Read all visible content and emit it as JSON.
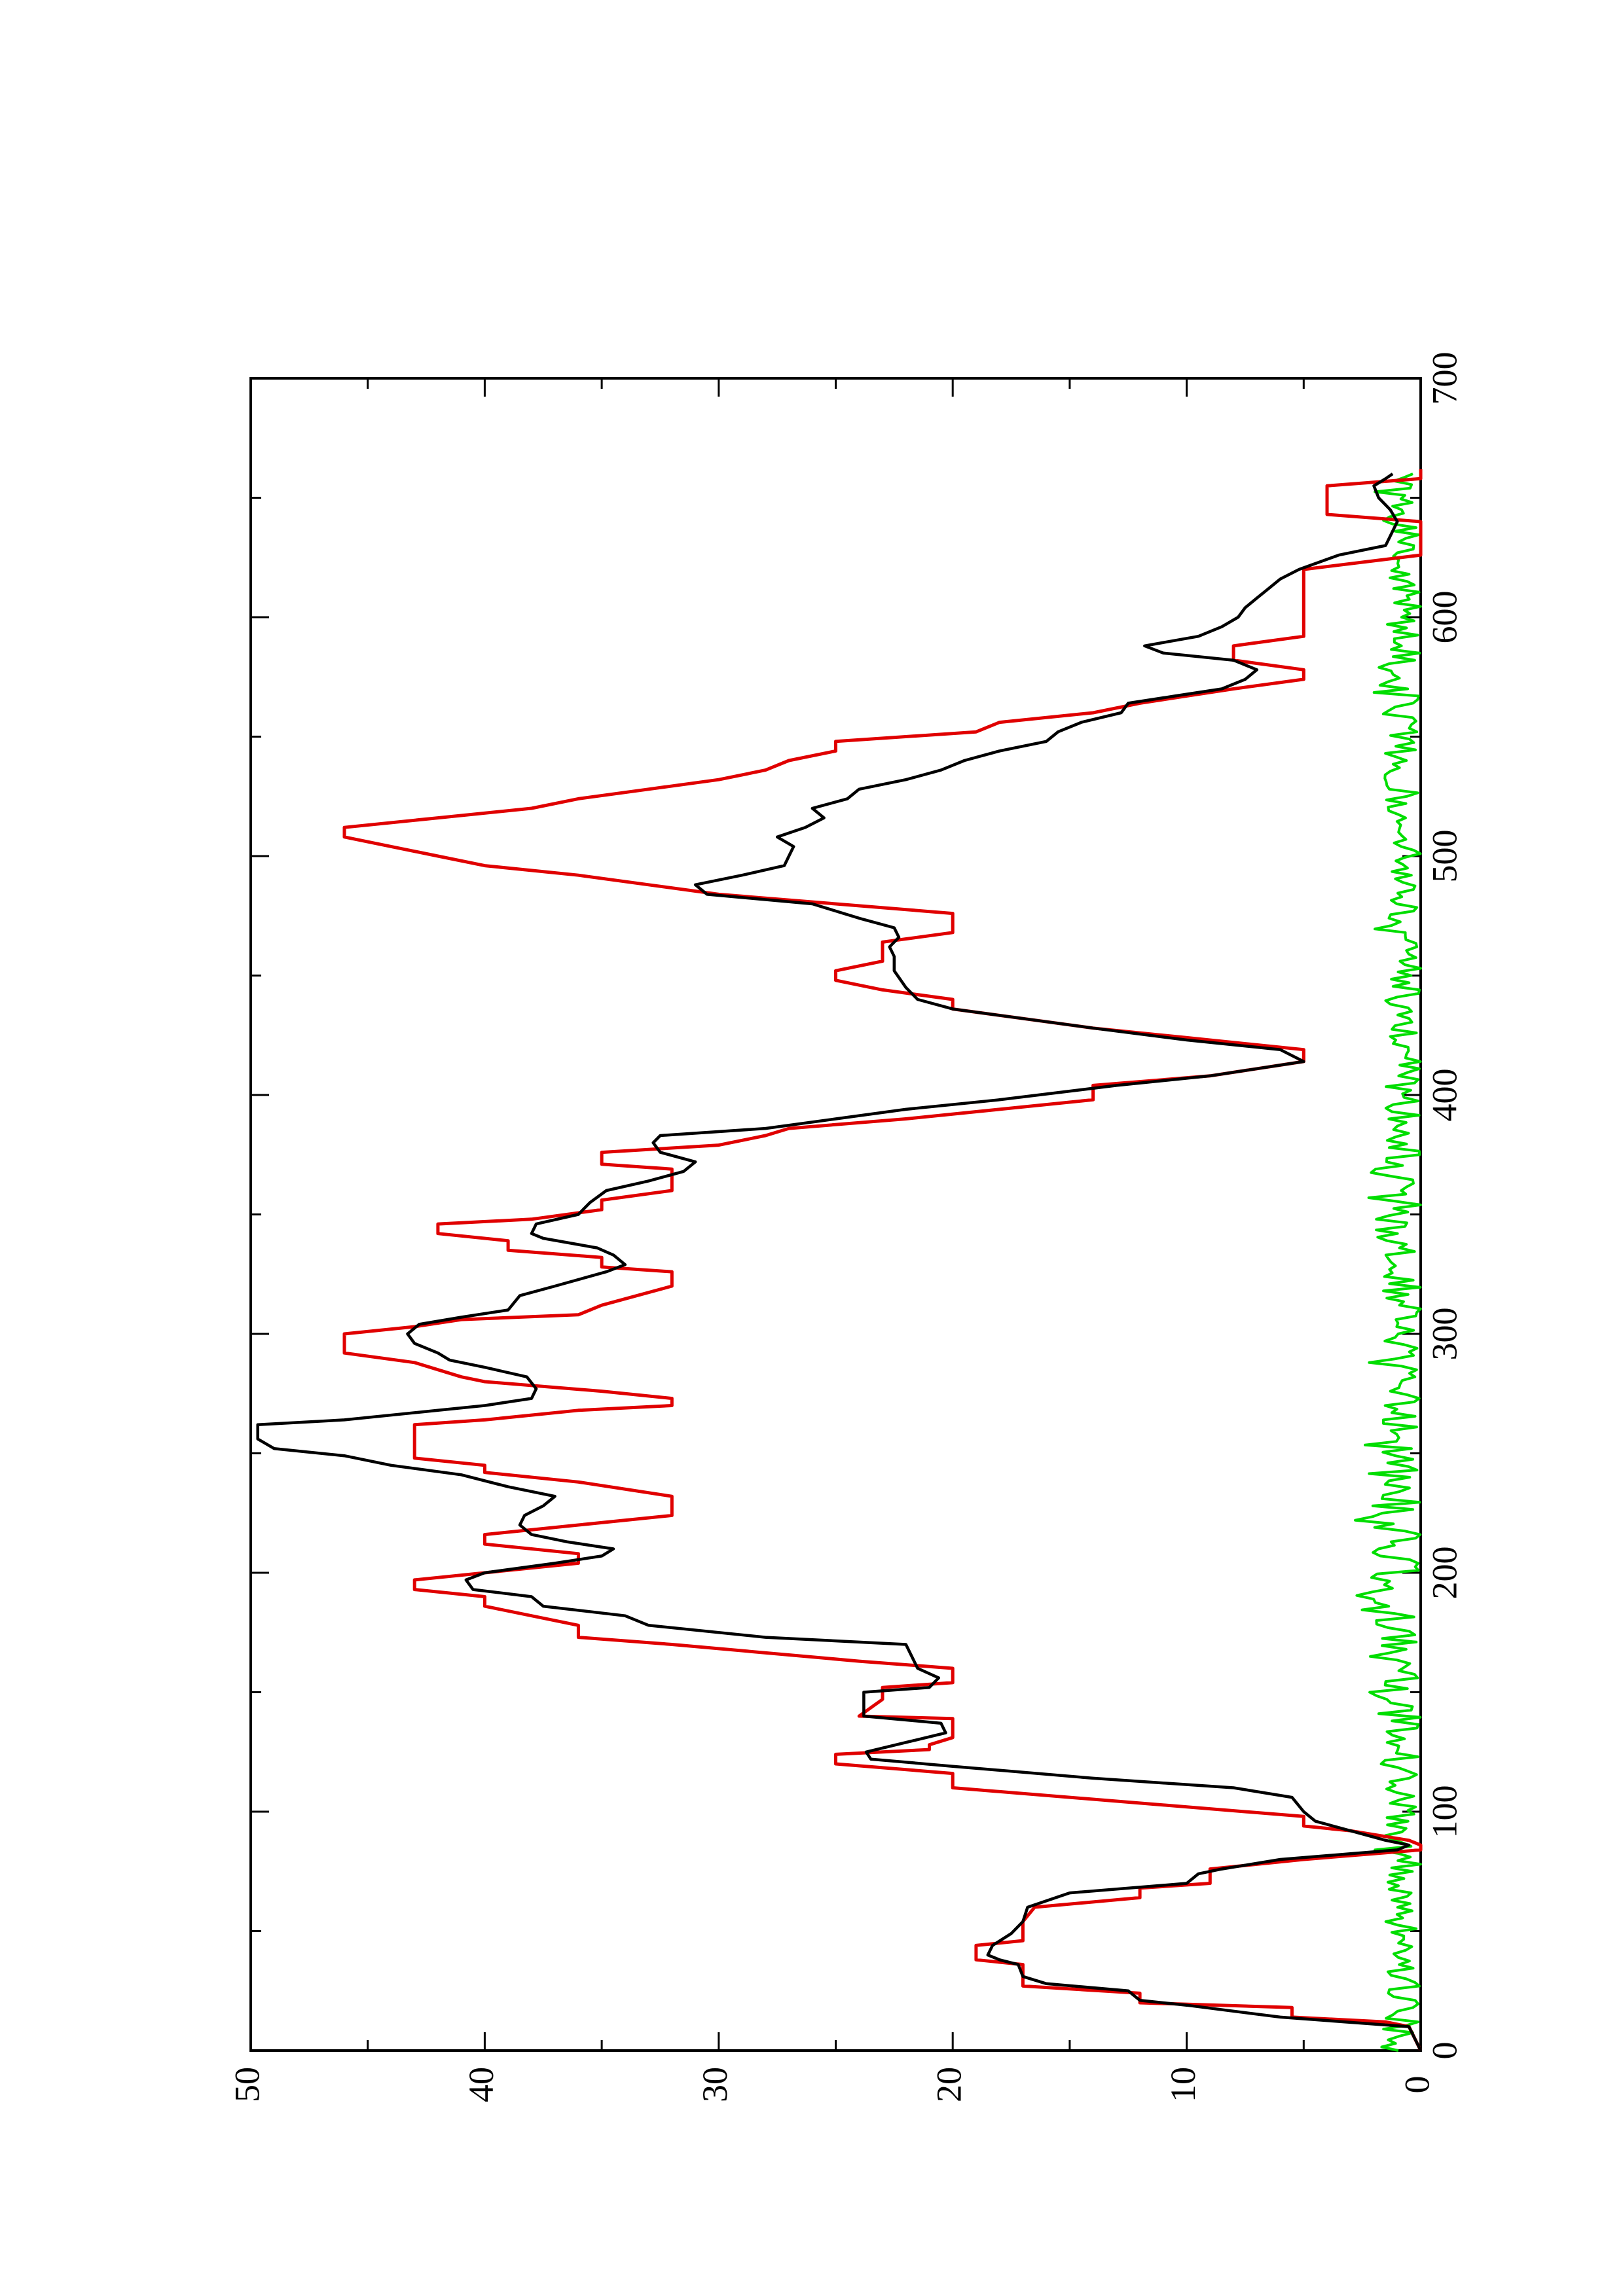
{
  "chart_data": {
    "type": "line",
    "orientation": "rotated-90-clockwise",
    "title": "",
    "xlabel": "",
    "ylabel": "",
    "xlim": [
      0,
      700
    ],
    "ylim": [
      0,
      50
    ],
    "x_ticks": [
      0,
      100,
      200,
      300,
      400,
      500,
      600,
      700
    ],
    "y_ticks": [
      0,
      10,
      20,
      30,
      40,
      50
    ],
    "x_tick_labels": [
      "0",
      "100",
      "200",
      "300",
      "400",
      "500",
      "600",
      "700"
    ],
    "y_tick_labels": [
      "0",
      "10",
      "20",
      "30",
      "40",
      "50"
    ],
    "grid": false,
    "legend": "none",
    "series": [
      {
        "color": "#000000",
        "points": [
          [
            0,
            0
          ],
          [
            10,
            0.5
          ],
          [
            14,
            6
          ],
          [
            19,
            10
          ],
          [
            21,
            12
          ],
          [
            25,
            12.5
          ],
          [
            28,
            16
          ],
          [
            31,
            17
          ],
          [
            36,
            17.2
          ],
          [
            38,
            18
          ],
          [
            40,
            18.5
          ],
          [
            44,
            18.3
          ],
          [
            49,
            17.5
          ],
          [
            54,
            17
          ],
          [
            60,
            16.8
          ],
          [
            66,
            15
          ],
          [
            70,
            10
          ],
          [
            74,
            9.5
          ],
          [
            76,
            8.5
          ],
          [
            80,
            6
          ],
          [
            84,
            1
          ],
          [
            86,
            0.5
          ],
          [
            88,
            1.5
          ],
          [
            92,
            3
          ],
          [
            96,
            4.5
          ],
          [
            100,
            5
          ],
          [
            106,
            5.5
          ],
          [
            110,
            8
          ],
          [
            114,
            14
          ],
          [
            119,
            20
          ],
          [
            122,
            23.5
          ],
          [
            125,
            23.7
          ],
          [
            129,
            22
          ],
          [
            133,
            20.3
          ],
          [
            137,
            20.5
          ],
          [
            140,
            23.8
          ],
          [
            150,
            23.8
          ],
          [
            152,
            21
          ],
          [
            156,
            20.6
          ],
          [
            160,
            21.5
          ],
          [
            170,
            22
          ],
          [
            173,
            28
          ],
          [
            178,
            33
          ],
          [
            182,
            34
          ],
          [
            186,
            37.5
          ],
          [
            190,
            38
          ],
          [
            193,
            40.5
          ],
          [
            197,
            40.8
          ],
          [
            200,
            40
          ],
          [
            204,
            37
          ],
          [
            207,
            35
          ],
          [
            210,
            34.5
          ],
          [
            213,
            36.5
          ],
          [
            216,
            38
          ],
          [
            220,
            38.5
          ],
          [
            224,
            38.3
          ],
          [
            228,
            37.5
          ],
          [
            232,
            37
          ],
          [
            236,
            39
          ],
          [
            241,
            41
          ],
          [
            245,
            44
          ],
          [
            249,
            46
          ],
          [
            252,
            49
          ],
          [
            256,
            49.7
          ],
          [
            262,
            49.7
          ],
          [
            264,
            46
          ],
          [
            268,
            42
          ],
          [
            270,
            40
          ],
          [
            273,
            38
          ],
          [
            277,
            37.8
          ],
          [
            282,
            38.2
          ],
          [
            286,
            40
          ],
          [
            289,
            41.5
          ],
          [
            292,
            42
          ],
          [
            296,
            43
          ],
          [
            300,
            43.3
          ],
          [
            304,
            42.8
          ],
          [
            307,
            41
          ],
          [
            310,
            39
          ],
          [
            316,
            38.5
          ],
          [
            320,
            37
          ],
          [
            326,
            34.8
          ],
          [
            329,
            34
          ],
          [
            333,
            34.5
          ],
          [
            336,
            35.2
          ],
          [
            340,
            37.5
          ],
          [
            342,
            38
          ],
          [
            346,
            37.8
          ],
          [
            350,
            36
          ],
          [
            355,
            35.5
          ],
          [
            360,
            34.8
          ],
          [
            364,
            33
          ],
          [
            368,
            31.5
          ],
          [
            372,
            31
          ],
          [
            376,
            32.5
          ],
          [
            380,
            32.8
          ],
          [
            383,
            32.5
          ],
          [
            386,
            28
          ],
          [
            390,
            25
          ],
          [
            394,
            22
          ],
          [
            398,
            18
          ],
          [
            404,
            13
          ],
          [
            408,
            9
          ],
          [
            414,
            5
          ],
          [
            419,
            6
          ],
          [
            423,
            10
          ],
          [
            428,
            14
          ],
          [
            432,
            17
          ],
          [
            436,
            20
          ],
          [
            440,
            21.5
          ],
          [
            445,
            22
          ],
          [
            452,
            22.5
          ],
          [
            458,
            22.5
          ],
          [
            462,
            22.7
          ],
          [
            466,
            22.3
          ],
          [
            470,
            22.5
          ],
          [
            474,
            24
          ],
          [
            480,
            26
          ],
          [
            484,
            30.5
          ],
          [
            488,
            31
          ],
          [
            492,
            29
          ],
          [
            496,
            27.2
          ],
          [
            500,
            27
          ],
          [
            504,
            26.8
          ],
          [
            508,
            27.5
          ],
          [
            512,
            26.3
          ],
          [
            516,
            25.5
          ],
          [
            520,
            26
          ],
          [
            524,
            24.5
          ],
          [
            528,
            24
          ],
          [
            532,
            22
          ],
          [
            536,
            20.5
          ],
          [
            540,
            19.5
          ],
          [
            544,
            18
          ],
          [
            548,
            16
          ],
          [
            552,
            15.5
          ],
          [
            556,
            14.5
          ],
          [
            560,
            12.8
          ],
          [
            564,
            12.5
          ],
          [
            567,
            10.5
          ],
          [
            570,
            8.5
          ],
          [
            574,
            7.5
          ],
          [
            578,
            7
          ],
          [
            582,
            8
          ],
          [
            585,
            11
          ],
          [
            588,
            11.8
          ],
          [
            592,
            9.5
          ],
          [
            596,
            8.5
          ],
          [
            600,
            7.8
          ],
          [
            604,
            7.5
          ],
          [
            608,
            7
          ],
          [
            612,
            6.5
          ],
          [
            616,
            6
          ],
          [
            620,
            5.2
          ],
          [
            626,
            3.5
          ],
          [
            630,
            1.5
          ],
          [
            640,
            1
          ],
          [
            645,
            1.3
          ],
          [
            650,
            1.8
          ],
          [
            655,
            2
          ],
          [
            658,
            1.5
          ],
          [
            660,
            1.2
          ]
        ]
      },
      {
        "color": "#e00000",
        "points": [
          [
            0,
            0
          ],
          [
            10,
            0.5
          ],
          [
            12,
            1.5
          ],
          [
            14,
            5.5
          ],
          [
            18,
            5.5
          ],
          [
            20,
            12
          ],
          [
            24,
            12
          ],
          [
            27,
            17
          ],
          [
            36,
            17
          ],
          [
            38,
            19
          ],
          [
            44,
            19
          ],
          [
            46,
            17
          ],
          [
            54,
            17
          ],
          [
            60,
            16.5
          ],
          [
            64,
            12
          ],
          [
            68,
            12
          ],
          [
            70,
            9
          ],
          [
            76,
            9
          ],
          [
            80,
            5
          ],
          [
            84,
            0
          ],
          [
            86,
            0
          ],
          [
            88,
            0.5
          ],
          [
            92,
            3
          ],
          [
            94,
            5
          ],
          [
            98,
            5
          ],
          [
            110,
            20
          ],
          [
            116,
            20
          ],
          [
            120,
            25
          ],
          [
            124,
            25
          ],
          [
            126,
            21
          ],
          [
            128,
            21
          ],
          [
            131,
            20
          ],
          [
            139,
            20
          ],
          [
            140,
            24
          ],
          [
            147,
            23
          ],
          [
            152,
            23
          ],
          [
            154,
            20
          ],
          [
            160,
            20
          ],
          [
            163,
            24
          ],
          [
            170,
            32
          ],
          [
            173,
            36
          ],
          [
            178,
            36
          ],
          [
            186,
            40
          ],
          [
            190,
            40
          ],
          [
            193,
            43
          ],
          [
            197,
            43
          ],
          [
            200,
            40
          ],
          [
            204,
            36
          ],
          [
            208,
            36
          ],
          [
            212,
            40
          ],
          [
            216,
            40
          ],
          [
            220,
            36
          ],
          [
            224,
            32
          ],
          [
            232,
            32
          ],
          [
            238,
            36
          ],
          [
            242,
            40
          ],
          [
            245,
            40
          ],
          [
            248,
            43
          ],
          [
            262,
            43
          ],
          [
            264,
            40
          ],
          [
            268,
            36
          ],
          [
            270,
            32
          ],
          [
            273,
            32
          ],
          [
            276,
            35
          ],
          [
            280,
            40
          ],
          [
            282,
            41
          ],
          [
            288,
            43
          ],
          [
            292,
            46
          ],
          [
            300,
            46
          ],
          [
            303,
            43
          ],
          [
            306,
            41
          ],
          [
            308,
            36
          ],
          [
            312,
            35
          ],
          [
            320,
            32
          ],
          [
            326,
            32
          ],
          [
            328,
            35
          ],
          [
            332,
            35
          ],
          [
            335,
            39
          ],
          [
            339,
            39
          ],
          [
            342,
            42
          ],
          [
            346,
            42
          ],
          [
            348,
            38
          ],
          [
            352,
            35
          ],
          [
            356,
            35
          ],
          [
            360,
            32
          ],
          [
            369,
            32
          ],
          [
            371,
            35
          ],
          [
            376,
            35
          ],
          [
            379,
            30
          ],
          [
            383,
            28
          ],
          [
            386,
            27
          ],
          [
            390,
            22
          ],
          [
            394,
            18
          ],
          [
            398,
            14
          ],
          [
            404,
            14
          ],
          [
            408,
            9
          ],
          [
            414,
            5
          ],
          [
            419,
            5
          ],
          [
            424,
            10
          ],
          [
            428,
            14
          ],
          [
            432,
            17
          ],
          [
            436,
            20
          ],
          [
            440,
            20
          ],
          [
            444,
            23
          ],
          [
            448,
            25
          ],
          [
            452,
            25
          ],
          [
            456,
            23
          ],
          [
            464,
            23
          ],
          [
            468,
            20
          ],
          [
            470,
            20
          ],
          [
            472,
            20
          ],
          [
            476,
            20
          ],
          [
            480,
            25
          ],
          [
            484,
            30
          ],
          [
            488,
            33
          ],
          [
            492,
            36
          ],
          [
            496,
            40
          ],
          [
            500,
            42
          ],
          [
            504,
            44
          ],
          [
            508,
            46
          ],
          [
            512,
            46
          ],
          [
            516,
            42
          ],
          [
            520,
            38
          ],
          [
            524,
            36
          ],
          [
            528,
            33
          ],
          [
            532,
            30
          ],
          [
            536,
            28
          ],
          [
            540,
            27
          ],
          [
            544,
            25
          ],
          [
            548,
            25
          ],
          [
            552,
            19
          ],
          [
            556,
            18
          ],
          [
            560,
            14
          ],
          [
            564,
            12
          ],
          [
            567,
            10
          ],
          [
            570,
            8
          ],
          [
            574,
            5
          ],
          [
            578,
            5
          ],
          [
            582,
            8
          ],
          [
            586,
            8
          ],
          [
            588,
            8
          ],
          [
            592,
            5
          ],
          [
            600,
            5
          ],
          [
            606,
            5
          ],
          [
            610,
            5
          ],
          [
            620,
            5
          ],
          [
            626,
            0
          ],
          [
            630,
            0
          ],
          [
            640,
            0
          ],
          [
            643,
            4
          ],
          [
            646,
            4
          ],
          [
            650,
            4
          ],
          [
            655,
            4
          ],
          [
            658,
            0
          ],
          [
            662,
            0
          ]
        ]
      },
      {
        "color": "#00dd00",
        "points": "noise"
      }
    ]
  }
}
